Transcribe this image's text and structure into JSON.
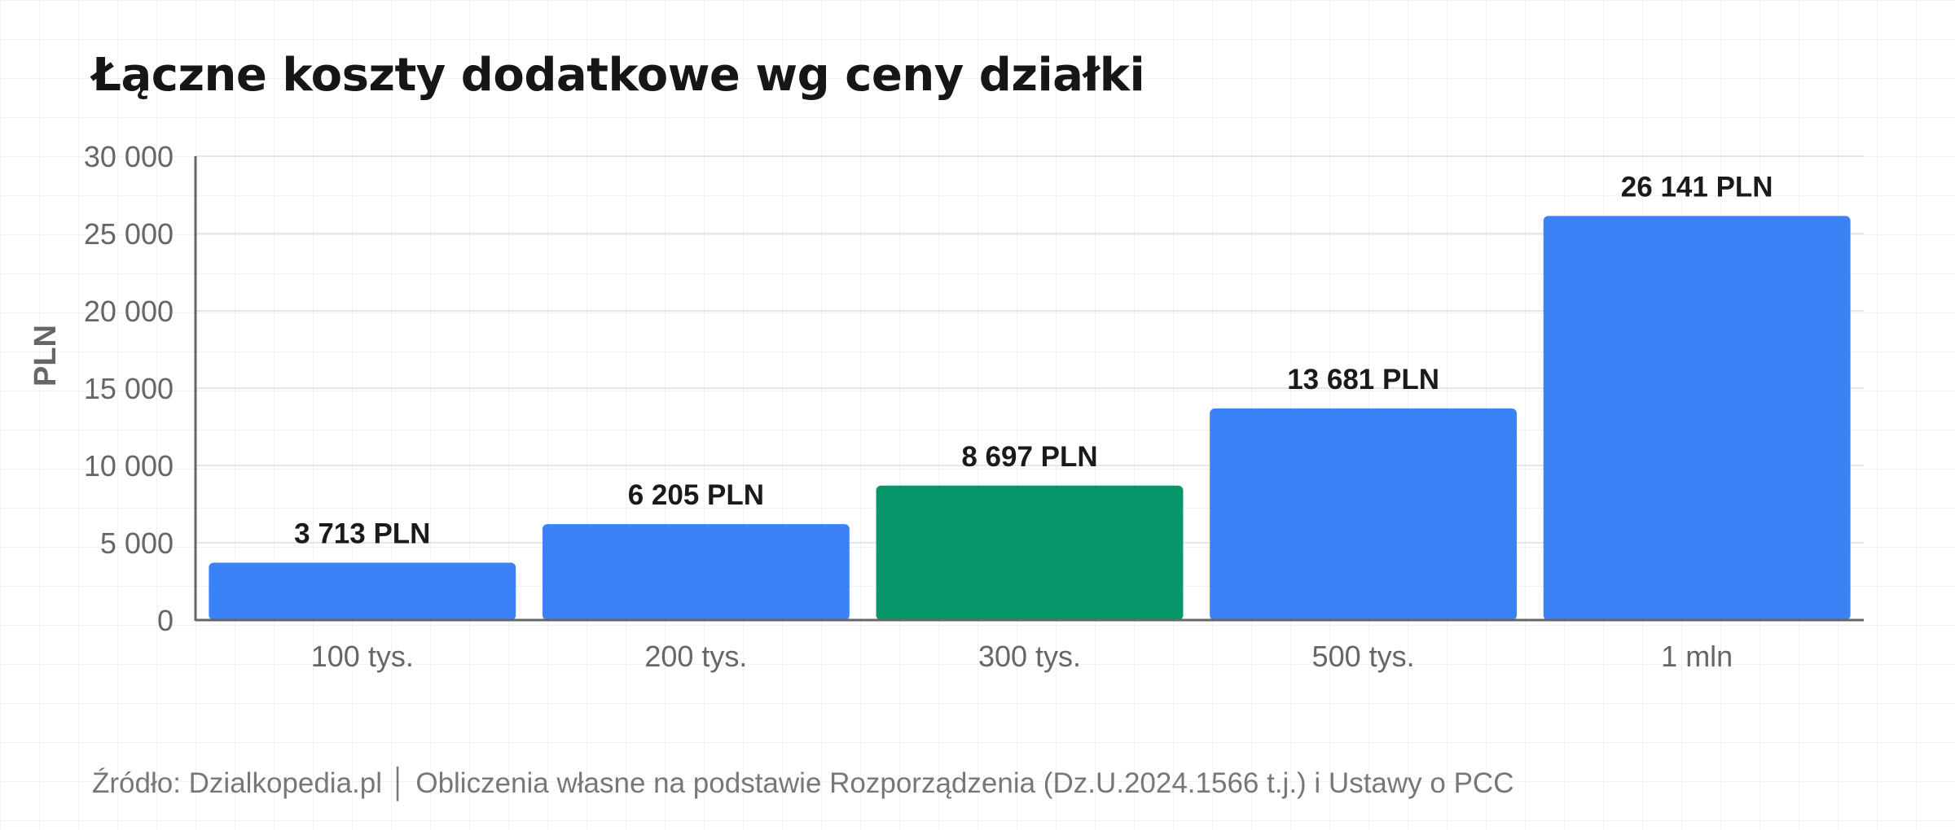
{
  "chart_data": {
    "type": "bar",
    "title": "Łączne koszty dodatkowe wg ceny działki",
    "ylabel": "PLN",
    "xlabel": "",
    "categories": [
      "100 tys.",
      "200 tys.",
      "300 tys.",
      "500 tys.",
      "1 mln"
    ],
    "values": [
      3713,
      6205,
      8697,
      13681,
      26141
    ],
    "value_labels": [
      "3 713 PLN",
      "6 205 PLN",
      "8 697 PLN",
      "13 681 PLN",
      "26 141 PLN"
    ],
    "bar_colors": [
      "#3b82f6",
      "#3b82f6",
      "#059669",
      "#3b82f6",
      "#3b82f6"
    ],
    "ylim": [
      0,
      30000
    ],
    "yticks": [
      0,
      5000,
      10000,
      15000,
      20000,
      25000,
      30000
    ],
    "ytick_labels": [
      "0",
      "5 000",
      "10 000",
      "15 000",
      "20 000",
      "25 000",
      "30 000"
    ],
    "grid": true,
    "legend": "none",
    "colors": {
      "primary": "#3b82f6",
      "highlight": "#059669",
      "axis": "#666666",
      "grid": "#e6e6e6"
    }
  },
  "source_note": "Źródło: Dzialkopedia.pl │ Obliczenia własne na podstawie Rozporządzenia (Dz.U.2024.1566 t.j.) i Ustawy o PCC"
}
